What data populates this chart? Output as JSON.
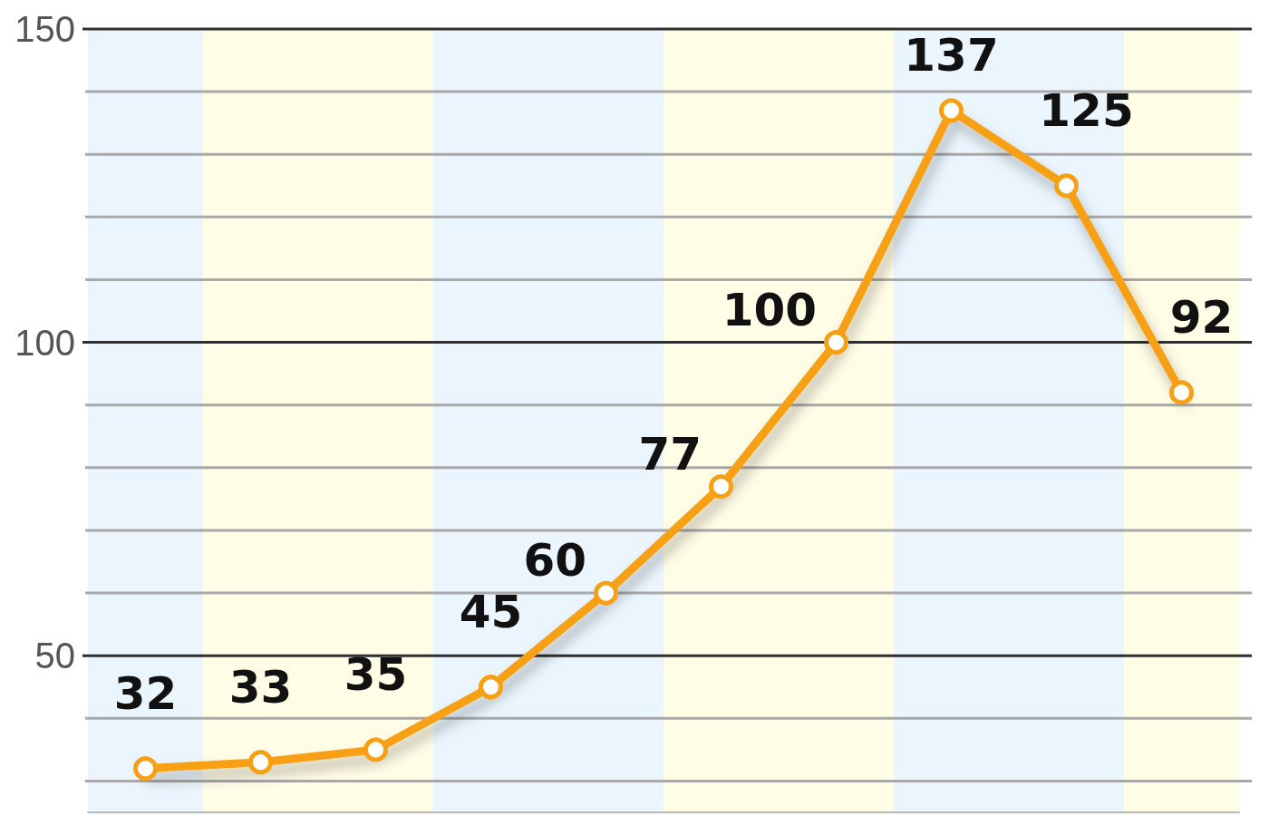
{
  "chart_data": {
    "type": "line",
    "categories": [
      null,
      null,
      null,
      null,
      null,
      null,
      null,
      null,
      null,
      null
    ],
    "series": [
      {
        "color": "#f7a014",
        "values": [
          32,
          33,
          35,
          45,
          60,
          77,
          100,
          137,
          125,
          92
        ]
      }
    ],
    "ylim": [
      25,
      150
    ],
    "yticks": [
      {
        "value": 30,
        "label": null
      },
      {
        "value": 40,
        "label": null
      },
      50,
      {
        "value": 60,
        "label": null
      },
      {
        "value": 70,
        "label": null
      },
      {
        "value": 80,
        "label": null
      },
      {
        "value": 90,
        "label": null
      },
      100,
      {
        "value": 110,
        "label": null
      },
      {
        "value": 120,
        "label": null
      },
      {
        "value": 130,
        "label": null
      },
      {
        "value": 140,
        "label": null
      },
      150
    ],
    "grid": "y",
    "marker": "circle",
    "data_labels": true,
    "tick_labels": "y"
  }
}
